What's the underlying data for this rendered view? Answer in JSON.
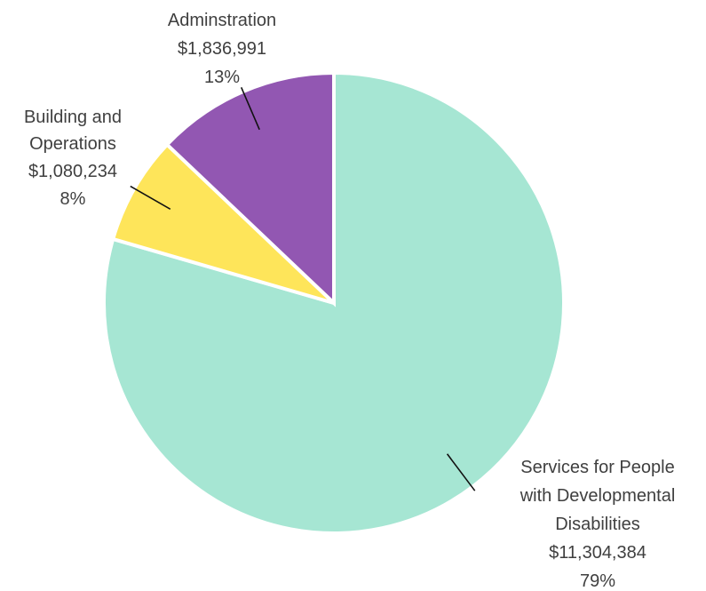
{
  "chart_data": {
    "type": "pie",
    "title": "",
    "categories": [
      "Services for People with Developmental Disabilities",
      "Building and Operations",
      "Adminstration"
    ],
    "values": [
      11304384,
      1080234,
      1836991
    ],
    "percent_labels": [
      "79%",
      "8%",
      "13%"
    ],
    "value_labels": [
      "$11,304,384",
      "$1,080,234",
      "$1,836,991"
    ],
    "label_lines": [
      [
        "Services for People",
        "with Developmental",
        "Disabilities"
      ],
      [
        "Building and",
        "Operations"
      ],
      [
        "Adminstration"
      ]
    ],
    "colors": [
      "#a6e6d3",
      "#fee55a",
      "#9257b2"
    ],
    "start_angle": "12 o'clock",
    "direction": "clockwise",
    "legend": "none"
  }
}
